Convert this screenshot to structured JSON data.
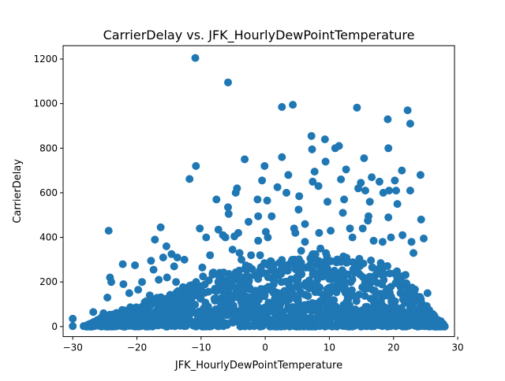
{
  "chart_data": {
    "type": "scatter",
    "title": "CarrierDelay vs. JFK_HourlyDewPointTemperature",
    "xlabel": "JFK_HourlyDewPointTemperature",
    "ylabel": "CarrierDelay",
    "xlim": [
      -31.5,
      29.5
    ],
    "ylim": [
      -45,
      1260
    ],
    "xticks": [
      -30,
      -20,
      -10,
      0,
      10,
      20,
      30
    ],
    "yticks": [
      0,
      200,
      400,
      600,
      800,
      1000,
      1200
    ],
    "grid": false,
    "legend": "none",
    "marker_color": "#1f77b4",
    "dense_region": {
      "note": "points overlap into a solid band",
      "x_range": [
        -28,
        28
      ],
      "upper_envelope": [
        [
          -28,
          10
        ],
        [
          -26,
          35
        ],
        [
          -24,
          60
        ],
        [
          -22,
          80
        ],
        [
          -20,
          100
        ],
        [
          -18,
          120
        ],
        [
          -16,
          140
        ],
        [
          -14,
          160
        ],
        [
          -12,
          190
        ],
        [
          -10,
          230
        ],
        [
          -8,
          250
        ],
        [
          -6,
          260
        ],
        [
          -4,
          270
        ],
        [
          -2,
          280
        ],
        [
          0,
          290
        ],
        [
          2,
          300
        ],
        [
          4,
          310
        ],
        [
          6,
          320
        ],
        [
          8,
          330
        ],
        [
          10,
          330
        ],
        [
          12,
          320
        ],
        [
          14,
          310
        ],
        [
          16,
          300
        ],
        [
          18,
          290
        ],
        [
          20,
          270
        ],
        [
          22,
          230
        ],
        [
          24,
          150
        ],
        [
          26,
          60
        ],
        [
          28,
          10
        ]
      ]
    },
    "points": [
      [
        -30,
        35
      ],
      [
        -30,
        2
      ],
      [
        -28.3,
        2
      ],
      [
        -27.2,
        2
      ],
      [
        -26.8,
        65
      ],
      [
        -26.2,
        5
      ],
      [
        -25.2,
        60
      ],
      [
        -24.6,
        130
      ],
      [
        -24.4,
        430
      ],
      [
        -24.2,
        220
      ],
      [
        -24,
        200
      ],
      [
        -22.2,
        280
      ],
      [
        -22.1,
        190
      ],
      [
        -21.2,
        150
      ],
      [
        -20.3,
        275
      ],
      [
        -20.6,
        55
      ],
      [
        -19.8,
        165
      ],
      [
        -19.2,
        200
      ],
      [
        -18.6,
        110
      ],
      [
        -18,
        140
      ],
      [
        -17.8,
        295
      ],
      [
        -17.4,
        255
      ],
      [
        -17.2,
        390
      ],
      [
        -16.6,
        210
      ],
      [
        -16.3,
        445
      ],
      [
        -15.9,
        310
      ],
      [
        -15.4,
        360
      ],
      [
        -15.3,
        220
      ],
      [
        -14.6,
        325
      ],
      [
        -14.2,
        270
      ],
      [
        -13.9,
        200
      ],
      [
        -13.7,
        310
      ],
      [
        -12.6,
        300
      ],
      [
        -11.8,
        662
      ],
      [
        -10.9,
        1205
      ],
      [
        -10.8,
        720
      ],
      [
        -10.2,
        440
      ],
      [
        -9.8,
        265
      ],
      [
        -9.2,
        400
      ],
      [
        -8.6,
        320
      ],
      [
        -8.2,
        240
      ],
      [
        -7.6,
        570
      ],
      [
        -7.3,
        435
      ],
      [
        -6.6,
        410
      ],
      [
        -6.2,
        400
      ],
      [
        -5.8,
        1095
      ],
      [
        -5.8,
        535
      ],
      [
        -5.7,
        505
      ],
      [
        -5.1,
        345
      ],
      [
        -4.8,
        405
      ],
      [
        -4.6,
        600
      ],
      [
        -4.4,
        620
      ],
      [
        -4.2,
        420
      ],
      [
        -4,
        330
      ],
      [
        -3.7,
        300
      ],
      [
        -3.2,
        750
      ],
      [
        -2.6,
        470
      ],
      [
        -2.2,
        320
      ],
      [
        -1.6,
        230
      ],
      [
        -1.2,
        570
      ],
      [
        -1.1,
        495
      ],
      [
        -1.1,
        385
      ],
      [
        -0.8,
        320
      ],
      [
        -0.5,
        655
      ],
      [
        -0.1,
        720
      ],
      [
        0.1,
        425
      ],
      [
        0.3,
        565
      ],
      [
        0.4,
        400
      ],
      [
        1,
        495
      ],
      [
        1.2,
        280
      ],
      [
        1.9,
        625
      ],
      [
        2.6,
        985
      ],
      [
        2.6,
        760
      ],
      [
        3.3,
        600
      ],
      [
        3.6,
        680
      ],
      [
        4.3,
        995
      ],
      [
        4.5,
        440
      ],
      [
        4.7,
        420
      ],
      [
        5.2,
        525
      ],
      [
        5.3,
        585
      ],
      [
        5.6,
        340
      ],
      [
        6.2,
        460
      ],
      [
        6.2,
        380
      ],
      [
        7.2,
        855
      ],
      [
        7.3,
        795
      ],
      [
        7.4,
        650
      ],
      [
        7.7,
        695
      ],
      [
        8.3,
        630
      ],
      [
        8.4,
        420
      ],
      [
        8.6,
        350
      ],
      [
        9.3,
        840
      ],
      [
        9.4,
        740
      ],
      [
        9.7,
        560
      ],
      [
        10.2,
        430
      ],
      [
        10.9,
        800
      ],
      [
        11.5,
        810
      ],
      [
        11.8,
        660
      ],
      [
        12.1,
        510
      ],
      [
        12.3,
        570
      ],
      [
        12.6,
        705
      ],
      [
        13.2,
        440
      ],
      [
        13.6,
        400
      ],
      [
        14.3,
        982
      ],
      [
        14.5,
        620
      ],
      [
        14.9,
        645
      ],
      [
        15.2,
        440
      ],
      [
        15.4,
        755
      ],
      [
        15.6,
        610
      ],
      [
        16,
        475
      ],
      [
        16.1,
        495
      ],
      [
        16.3,
        560
      ],
      [
        16.6,
        670
      ],
      [
        16.9,
        385
      ],
      [
        17.8,
        650
      ],
      [
        18.3,
        380
      ],
      [
        18.4,
        600
      ],
      [
        19.1,
        930
      ],
      [
        19.2,
        800
      ],
      [
        19.2,
        490
      ],
      [
        19.3,
        610
      ],
      [
        19.6,
        400
      ],
      [
        20.2,
        655
      ],
      [
        20.4,
        610
      ],
      [
        20.6,
        550
      ],
      [
        21.3,
        700
      ],
      [
        21.4,
        410
      ],
      [
        22.2,
        970
      ],
      [
        22.6,
        910
      ],
      [
        22.6,
        610
      ],
      [
        22.8,
        380
      ],
      [
        23.1,
        330
      ],
      [
        24.2,
        680
      ],
      [
        24.3,
        480
      ],
      [
        24.7,
        395
      ],
      [
        25.3,
        150
      ],
      [
        26.2,
        50
      ],
      [
        27.2,
        3
      ],
      [
        27.8,
        3
      ],
      [
        -27.6,
        5
      ],
      [
        -26.6,
        10
      ],
      [
        26.8,
        10
      ],
      [
        25.6,
        20
      ]
    ]
  }
}
